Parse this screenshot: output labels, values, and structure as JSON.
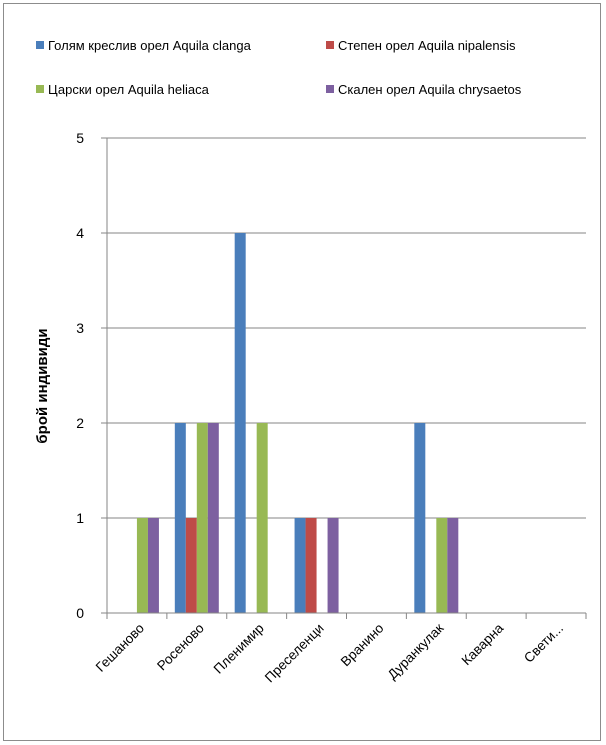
{
  "chart_data": {
    "type": "bar",
    "title": "",
    "xlabel": "",
    "ylabel": "брой индивиди",
    "ylim": [
      0,
      5
    ],
    "yticks": [
      "0",
      "1",
      "2",
      "3",
      "4",
      "5"
    ],
    "grid": true,
    "legend_position": "top",
    "categories": [
      "Гешаново",
      "Росеново",
      "Пленимир",
      "Преселенци",
      "Вранино",
      "Дуранкулак",
      "Каварна",
      "Свети..."
    ],
    "series": [
      {
        "name": "Голям креслив орел Aquila clanga",
        "color": "#4a7ebb",
        "values": [
          0,
          2,
          4,
          1,
          0,
          2,
          0,
          0
        ]
      },
      {
        "name": "Степен орел Aquila nipalensis",
        "color": "#be4b48",
        "values": [
          0,
          1,
          0,
          1,
          0,
          0,
          0,
          0
        ]
      },
      {
        "name": "Царски орел Aquila heliaca",
        "color": "#98b954",
        "values": [
          1,
          2,
          2,
          0,
          0,
          1,
          0,
          0
        ]
      },
      {
        "name": "Скален орел Aquila chrysaetos",
        "color": "#7d60a0",
        "values": [
          1,
          2,
          0,
          1,
          0,
          1,
          0,
          0
        ]
      }
    ]
  }
}
